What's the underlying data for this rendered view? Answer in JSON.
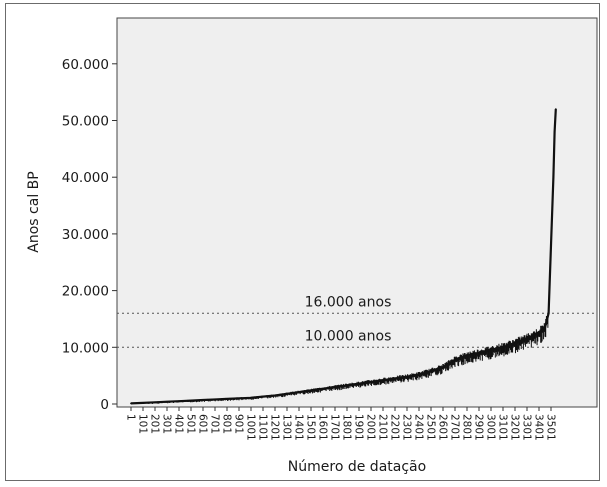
{
  "chart_data": {
    "type": "line",
    "title": "",
    "xlabel": "Número de datação",
    "ylabel": "Anos cal BP",
    "ylim": [
      0,
      65000
    ],
    "xlim": [
      1,
      3600
    ],
    "grid": false,
    "legend": "none",
    "y_ticks": [
      0,
      10000,
      20000,
      30000,
      40000,
      50000,
      60000
    ],
    "y_tick_labels": [
      "0",
      "10.000",
      "20.000",
      "30.000",
      "40.000",
      "50.000",
      "60.000"
    ],
    "x_ticks": [
      1,
      101,
      201,
      301,
      401,
      501,
      601,
      701,
      801,
      901,
      1001,
      1101,
      1201,
      1301,
      1401,
      1501,
      1601,
      1701,
      1801,
      1901,
      2001,
      2101,
      2201,
      2301,
      2401,
      2501,
      2601,
      2701,
      2801,
      2901,
      3001,
      3101,
      3201,
      3301,
      3401,
      3501
    ],
    "x_tick_labels": [
      "1",
      "101",
      "201",
      "301",
      "401",
      "501",
      "601",
      "701",
      "801",
      "901",
      "1001",
      "1101",
      "1201",
      "1301",
      "1401",
      "1501",
      "1601",
      "1701",
      "1801",
      "1901",
      "2001",
      "2101",
      "2201",
      "2301",
      "2401",
      "2501",
      "2601",
      "2701",
      "2801",
      "2901",
      "3001",
      "3101",
      "3201",
      "3301",
      "3401",
      "3501"
    ],
    "series": [
      {
        "x": [
          1,
          101,
          201,
          301,
          401,
          501,
          601,
          701,
          801,
          901,
          1001,
          1101,
          1201,
          1301,
          1401,
          1501,
          1601,
          1701,
          1801,
          1901,
          2001,
          2101,
          2201,
          2301,
          2401,
          2501,
          2601,
          2701,
          2801,
          2901,
          3001,
          3101,
          3201,
          3301,
          3401,
          3451,
          3481,
          3501,
          3521,
          3531,
          3541
        ],
        "y": [
          100,
          200,
          300,
          400,
          500,
          600,
          700,
          800,
          900,
          1000,
          1100,
          1300,
          1500,
          1800,
          2100,
          2400,
          2700,
          3000,
          3300,
          3600,
          3900,
          4200,
          4500,
          4800,
          5200,
          5800,
          6500,
          7800,
          8500,
          9000,
          9500,
          10000,
          10700,
          11500,
          12500,
          13500,
          16000,
          28000,
          40000,
          48000,
          52000
        ],
        "color": "#111111"
      }
    ],
    "reference_lines": [
      {
        "y": 16000,
        "label": "16.000 anos",
        "style": "dotted",
        "color": "#555555"
      },
      {
        "y": 10000,
        "label": "10.000 anos",
        "style": "dotted",
        "color": "#555555"
      }
    ],
    "background_color": "#efefef"
  }
}
